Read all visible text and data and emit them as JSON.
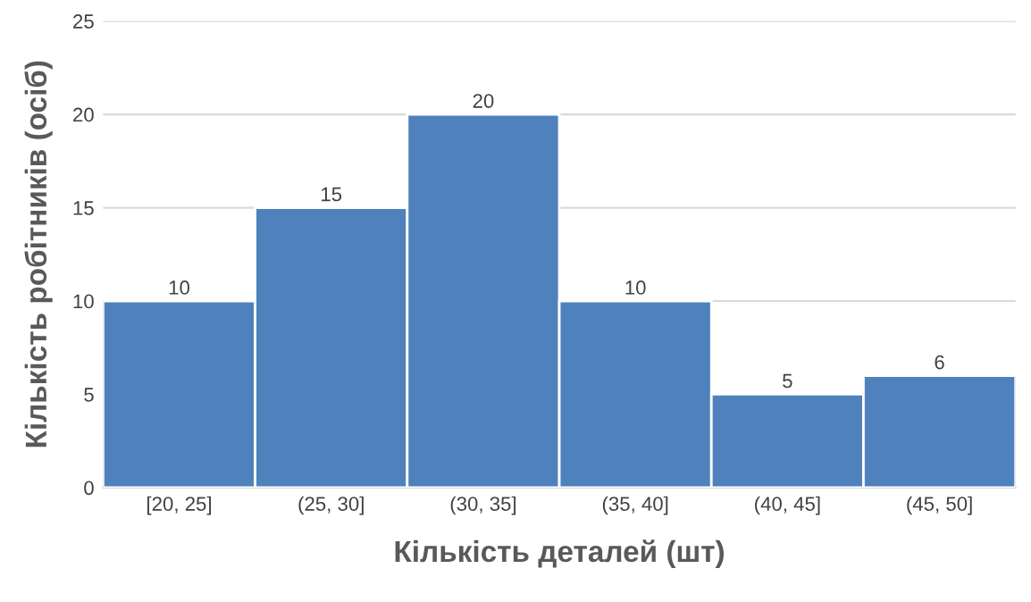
{
  "chart_data": {
    "type": "bar",
    "xlabel": "Кількість деталей (шт)",
    "ylabel": "Кількість робітників (осіб)",
    "categories": [
      "[20, 25]",
      "(25, 30]",
      "(30, 35]",
      "(35, 40]",
      "(40, 45]",
      "(45, 50]"
    ],
    "values": [
      10,
      15,
      20,
      10,
      5,
      6
    ],
    "color": "#4f81bd",
    "ylim": [
      0,
      25
    ],
    "yticks": [
      0,
      5,
      10,
      15,
      20,
      25
    ],
    "grid": "y",
    "data_labels": true,
    "legend": false
  }
}
